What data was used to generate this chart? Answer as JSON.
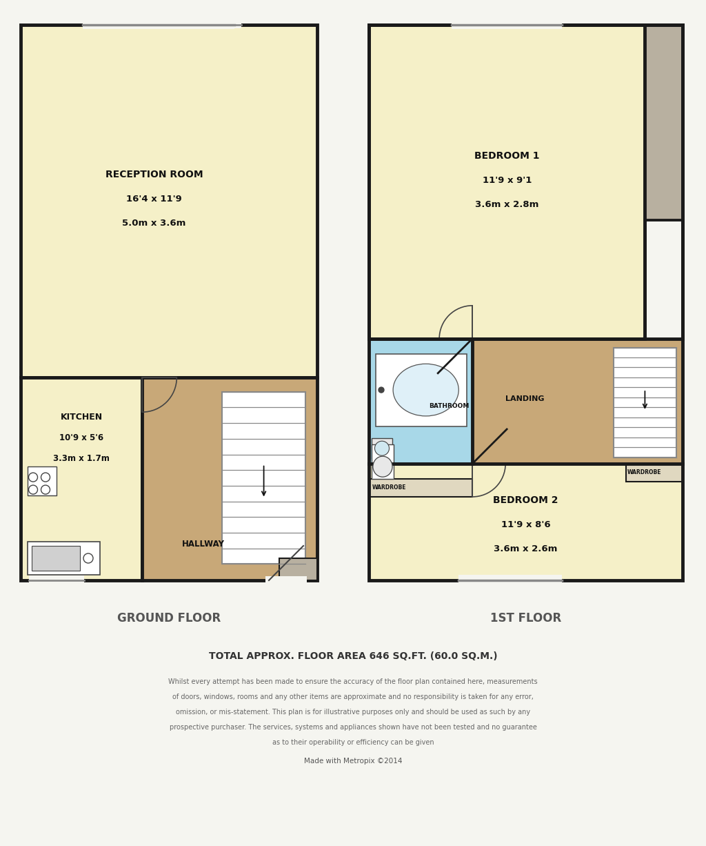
{
  "bg_color": "#f5f5f0",
  "wall_color": "#1a1a1a",
  "room_yellow": "#f5f0c8",
  "room_tan": "#c8a878",
  "room_blue": "#a8d8e8",
  "room_gray": "#b8b0a0",
  "room_white": "#ffffff",
  "ground_floor_label": "GROUND FLOOR",
  "first_floor_label": "1ST FLOOR",
  "total_area_text": "TOTAL APPROX. FLOOR AREA 646 SQ.FT. (60.0 SQ.M.)",
  "disclaimer_lines": [
    "Whilst every attempt has been made to ensure the accuracy of the floor plan contained here, measurements",
    "of doors, windows, rooms and any other items are approximate and no responsibility is taken for any error,",
    "omission, or mis-statement. This plan is for illustrative purposes only and should be used as such by any",
    "prospective purchaser. The services, systems and appliances shown have not been tested and no guarantee",
    "as to their operability or efficiency can be given"
  ],
  "made_with": "Made with Metropix ©2014"
}
